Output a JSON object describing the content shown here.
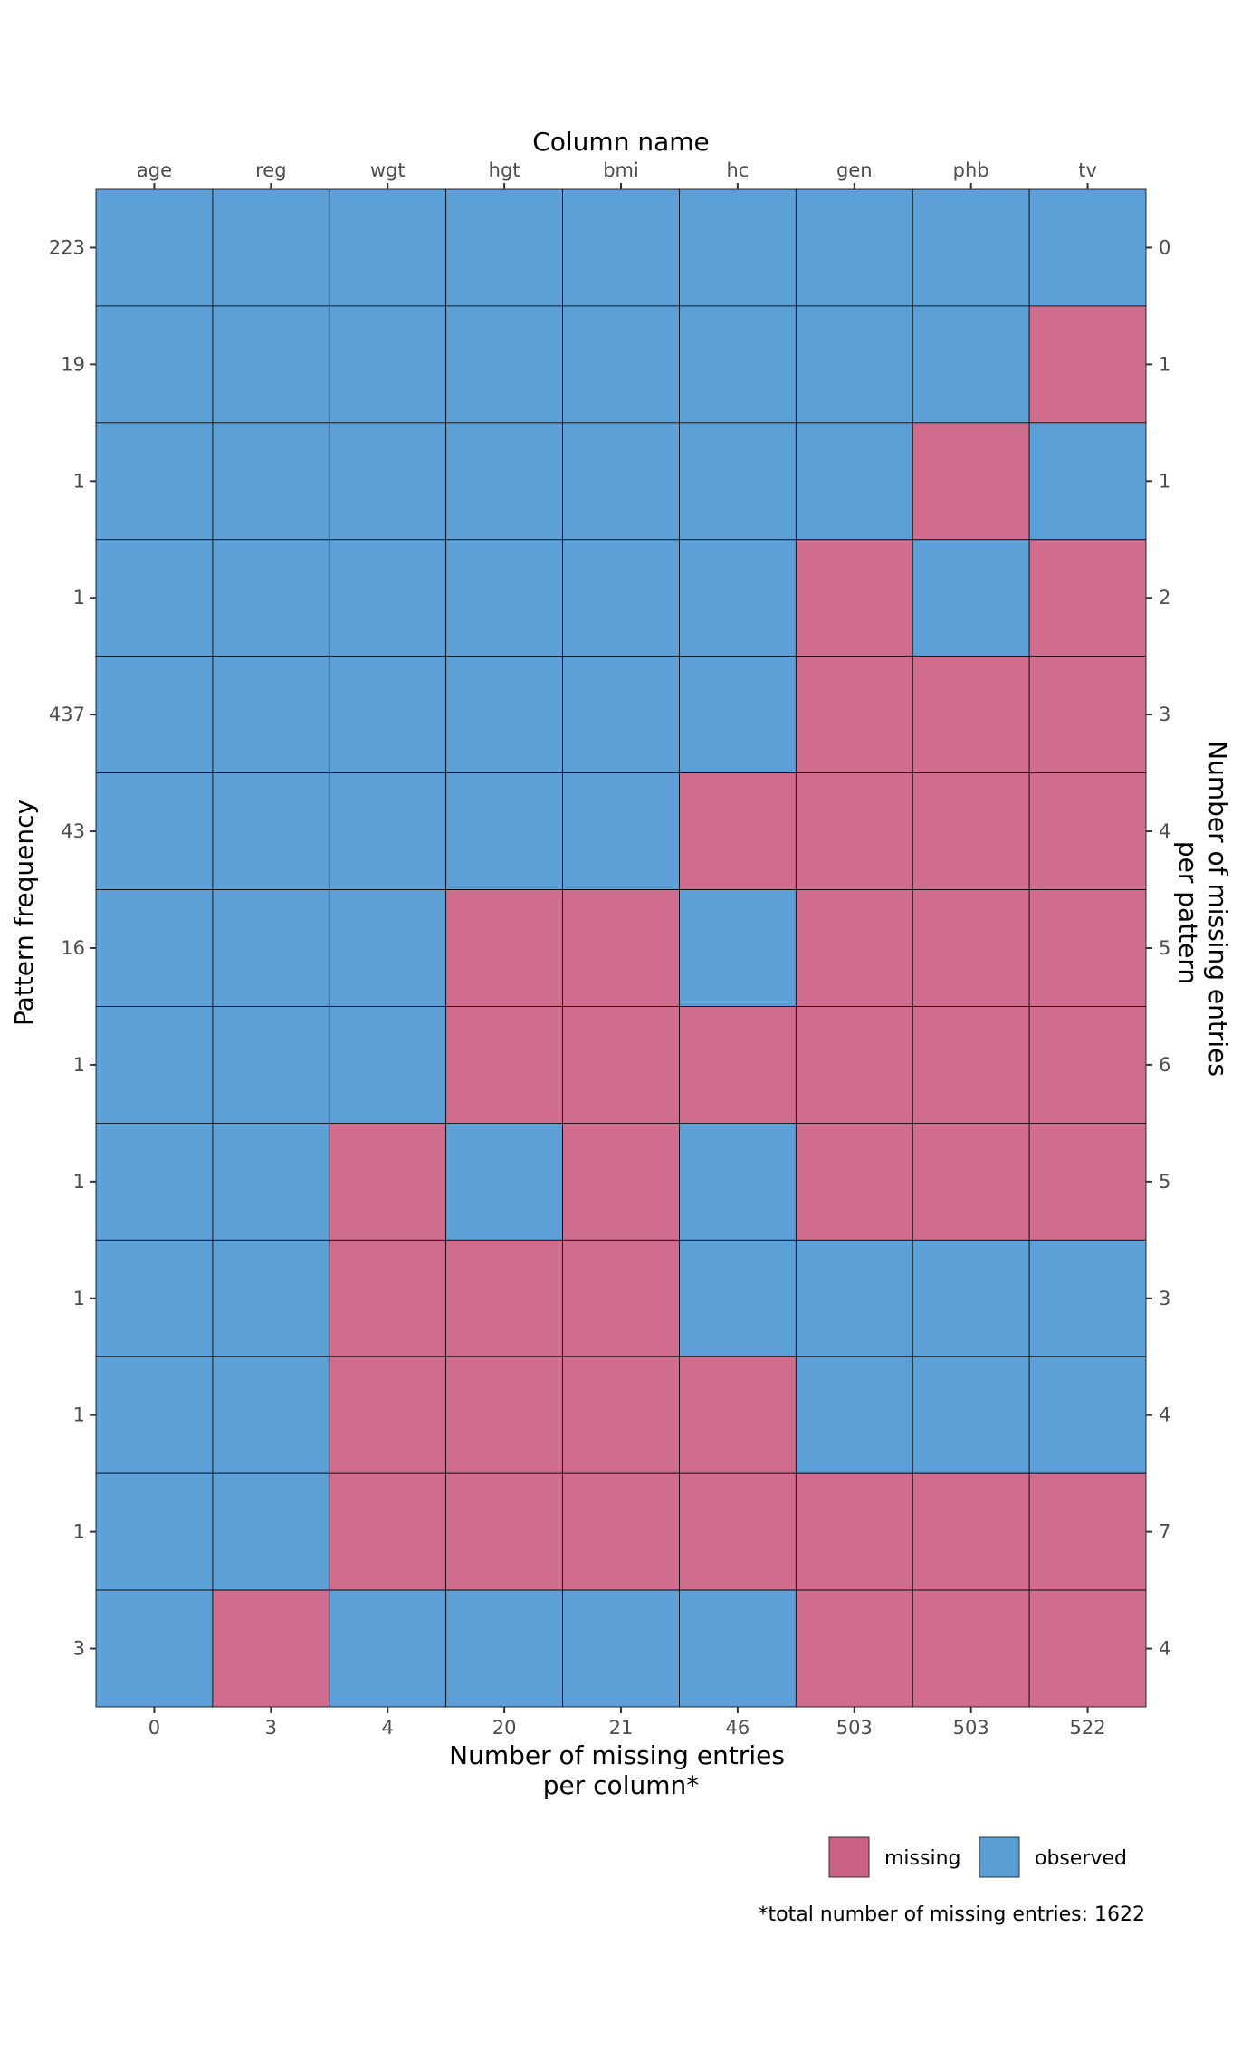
{
  "chart_data": {
    "type": "heatmap",
    "top_axis_title": "Column name",
    "columns": [
      "age",
      "reg",
      "wgt",
      "hgt",
      "bmi",
      "hc",
      "gen",
      "phb",
      "tv"
    ],
    "missing_per_column": [
      0,
      3,
      4,
      20,
      21,
      46,
      503,
      503,
      522
    ],
    "pattern_frequency": [
      223,
      19,
      1,
      1,
      437,
      43,
      16,
      1,
      1,
      1,
      1,
      1,
      3
    ],
    "missing_per_pattern": [
      0,
      1,
      1,
      2,
      3,
      4,
      5,
      6,
      5,
      3,
      4,
      7,
      4
    ],
    "patterns": [
      [
        1,
        1,
        1,
        1,
        1,
        1,
        1,
        1,
        1
      ],
      [
        1,
        1,
        1,
        1,
        1,
        1,
        1,
        1,
        0
      ],
      [
        1,
        1,
        1,
        1,
        1,
        1,
        1,
        0,
        1
      ],
      [
        1,
        1,
        1,
        1,
        1,
        1,
        0,
        1,
        0
      ],
      [
        1,
        1,
        1,
        1,
        1,
        1,
        0,
        0,
        0
      ],
      [
        1,
        1,
        1,
        1,
        1,
        0,
        0,
        0,
        0
      ],
      [
        1,
        1,
        1,
        0,
        0,
        1,
        0,
        0,
        0
      ],
      [
        1,
        1,
        1,
        0,
        0,
        0,
        0,
        0,
        0
      ],
      [
        1,
        1,
        0,
        1,
        0,
        1,
        0,
        0,
        0
      ],
      [
        1,
        1,
        0,
        0,
        0,
        1,
        1,
        1,
        1
      ],
      [
        1,
        1,
        0,
        0,
        0,
        0,
        1,
        1,
        1
      ],
      [
        1,
        1,
        0,
        0,
        0,
        0,
        0,
        0,
        0
      ],
      [
        1,
        0,
        1,
        1,
        1,
        1,
        0,
        0,
        0
      ]
    ],
    "pattern_encoding_note": "",
    "left_axis_title": "Pattern frequency",
    "right_axis_title": [
      "Number of missing entries",
      "per pattern"
    ],
    "bottom_axis_title": [
      "Number of missing entries",
      "per column*"
    ],
    "legend": [
      {
        "label": "missing",
        "color": "#CC6188"
      },
      {
        "label": "observed",
        "color": "#5A9ED6"
      }
    ],
    "caption": "*total number of missing entries: 1622",
    "colors": {
      "missing": "#D06D8F",
      "observed": "#5DA0D7",
      "grid_line": "#000000"
    }
  }
}
